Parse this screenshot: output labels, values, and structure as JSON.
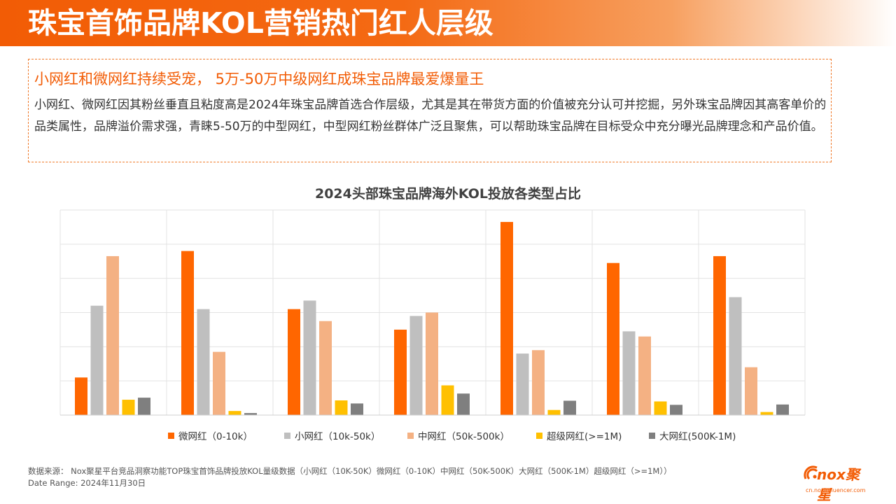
{
  "header": {
    "title": "珠宝首饰品牌KOL营销热门红人层级"
  },
  "insight": {
    "heading": "小网红和微网红持续受宠， 5万-50万中级网红成珠宝品牌最爱爆量王",
    "body": "小网红、微网红因其粉丝垂直且粘度高是2024年珠宝品牌首选合作层级，尤其是其在带货方面的价值被充分认可并挖掘，另外珠宝品牌因其高客单价的品类属性，品牌溢价需求强，青睐5-50万的中型网红，中型网红粉丝群体广泛且聚焦，可以帮助珠宝品牌在目标受众中充分曝光品牌理念和产品价值。"
  },
  "chart_data": {
    "type": "bar",
    "title": "2024头部珠宝品牌海外KOL投放各类型占比",
    "categories": [
      "",
      "",
      "",
      "",
      "",
      "",
      ""
    ],
    "ylim": [
      0,
      0.6
    ],
    "grid": true,
    "legend_position": "bottom",
    "series": [
      {
        "name": "微网红（0-10k）",
        "color": "#ff6600",
        "values": [
          0.11,
          0.48,
          0.31,
          0.25,
          0.565,
          0.445,
          0.465
        ]
      },
      {
        "name": "小网红（10k-50k）",
        "color": "#bfbfbf",
        "values": [
          0.32,
          0.31,
          0.335,
          0.29,
          0.18,
          0.245,
          0.345
        ]
      },
      {
        "name": "中网红（50k-500k）",
        "color": "#f4b183",
        "values": [
          0.465,
          0.185,
          0.275,
          0.3,
          0.19,
          0.23,
          0.14
        ]
      },
      {
        "name": "超级网红(>=1M)",
        "color": "#ffc000",
        "values": [
          0.045,
          0.012,
          0.043,
          0.087,
          0.015,
          0.04,
          0.009
        ]
      },
      {
        "name": "大网红(500K-1M)",
        "color": "#7f7f7f",
        "values": [
          0.051,
          0.006,
          0.034,
          0.063,
          0.042,
          0.03,
          0.031
        ]
      }
    ]
  },
  "footer": {
    "source": "数据来源：     Nox聚星平台竞品洞察功能TOP珠宝首饰品牌投放KOL量级数据（小网红（10K-50K）微网红（0-10K）中网红（50K-500K）大网红（500K-1M）超级网红（>=1M））",
    "date_range": "Date  Range:    2024年11月30日"
  },
  "logo": {
    "text": "nox聚星",
    "url": "cn.noxinfluencer.com"
  }
}
